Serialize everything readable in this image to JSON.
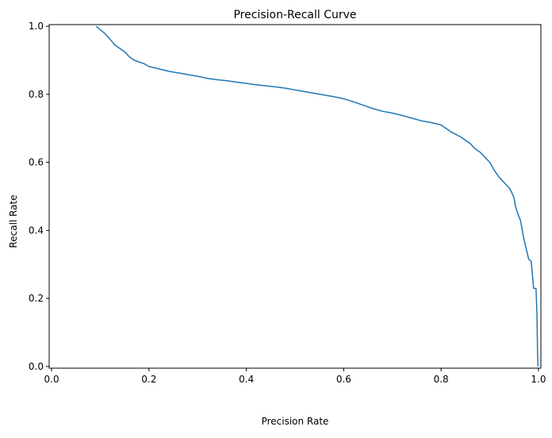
{
  "chart_data": {
    "type": "line",
    "title": "Precision-Recall Curve",
    "xlabel": "Precision Rate",
    "ylabel": "Recall Rate",
    "xlim": [
      -0.005,
      1.005
    ],
    "ylim": [
      -0.005,
      1.005
    ],
    "x_ticks": [
      0.0,
      0.2,
      0.4,
      0.6,
      0.8,
      1.0
    ],
    "x_tick_labels": [
      "0.0",
      "0.2",
      "0.4",
      "0.6",
      "0.8",
      "1.0"
    ],
    "y_ticks": [
      0.0,
      0.2,
      0.4,
      0.6,
      0.8,
      1.0
    ],
    "y_tick_labels": [
      "0.0",
      "0.2",
      "0.4",
      "0.6",
      "0.8",
      "1.0"
    ],
    "grid": false,
    "legend": "none",
    "line_color": "#1f77b4",
    "series": [
      {
        "x": [
          0.092,
          0.1,
          0.11,
          0.12,
          0.13,
          0.14,
          0.15,
          0.16,
          0.17,
          0.18,
          0.19,
          0.2,
          0.22,
          0.24,
          0.26,
          0.28,
          0.3,
          0.32,
          0.34,
          0.36,
          0.38,
          0.4,
          0.42,
          0.44,
          0.46,
          0.48,
          0.5,
          0.52,
          0.54,
          0.56,
          0.58,
          0.6,
          0.62,
          0.64,
          0.66,
          0.68,
          0.7,
          0.72,
          0.74,
          0.76,
          0.78,
          0.8,
          0.82,
          0.84,
          0.86,
          0.87,
          0.88,
          0.89,
          0.9,
          0.91,
          0.92,
          0.93,
          0.94,
          0.945,
          0.95,
          0.953,
          0.955,
          0.96,
          0.963,
          0.965,
          0.968,
          0.97,
          0.975,
          0.98,
          0.985,
          0.99,
          0.995,
          0.997,
          0.998,
          0.999
        ],
        "y": [
          1.0,
          0.99,
          0.978,
          0.962,
          0.945,
          0.935,
          0.925,
          0.91,
          0.9,
          0.895,
          0.89,
          0.882,
          0.875,
          0.868,
          0.863,
          0.858,
          0.853,
          0.847,
          0.843,
          0.84,
          0.836,
          0.832,
          0.828,
          0.825,
          0.822,
          0.818,
          0.813,
          0.808,
          0.803,
          0.798,
          0.793,
          0.787,
          0.778,
          0.768,
          0.758,
          0.75,
          0.745,
          0.738,
          0.73,
          0.722,
          0.717,
          0.71,
          0.69,
          0.675,
          0.655,
          0.64,
          0.63,
          0.615,
          0.6,
          0.575,
          0.555,
          0.54,
          0.525,
          0.512,
          0.495,
          0.47,
          0.46,
          0.44,
          0.43,
          0.415,
          0.39,
          0.375,
          0.345,
          0.315,
          0.31,
          0.23,
          0.229,
          0.15,
          0.05,
          0.0
        ]
      }
    ]
  }
}
